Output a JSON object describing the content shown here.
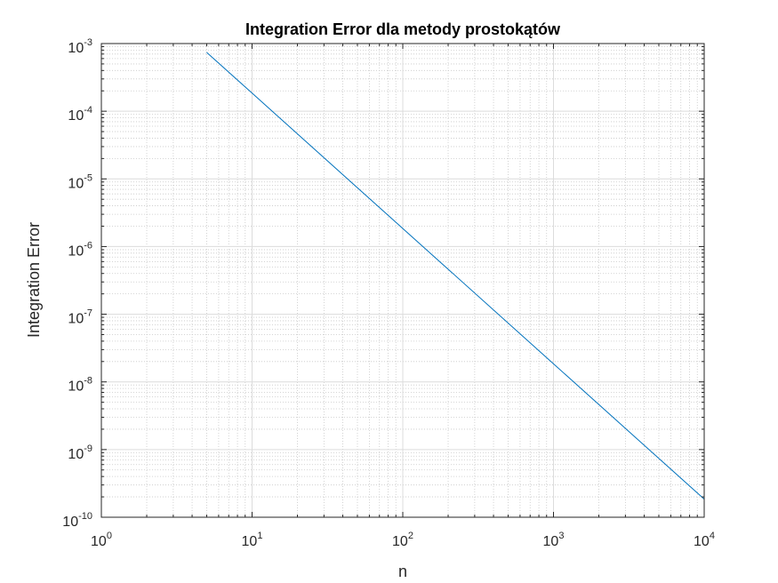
{
  "chart_data": {
    "type": "line",
    "title": "Integration Error dla metody prostokątów",
    "xlabel": "n",
    "ylabel": "Integration Error",
    "xscale": "log",
    "yscale": "log",
    "xlim": [
      1,
      10000
    ],
    "ylim": [
      1e-10,
      0.001
    ],
    "x_ticks": [
      {
        "value": 1,
        "base": "10",
        "exp": "0"
      },
      {
        "value": 10,
        "base": "10",
        "exp": "1"
      },
      {
        "value": 100,
        "base": "10",
        "exp": "2"
      },
      {
        "value": 1000,
        "base": "10",
        "exp": "3"
      },
      {
        "value": 10000,
        "base": "10",
        "exp": "4"
      }
    ],
    "y_ticks": [
      {
        "value": 1e-10,
        "base": "10",
        "exp": "-10"
      },
      {
        "value": 1e-09,
        "base": "10",
        "exp": "-9"
      },
      {
        "value": 1e-08,
        "base": "10",
        "exp": "-8"
      },
      {
        "value": 1e-07,
        "base": "10",
        "exp": "-7"
      },
      {
        "value": 1e-06,
        "base": "10",
        "exp": "-6"
      },
      {
        "value": 1e-05,
        "base": "10",
        "exp": "-5"
      },
      {
        "value": 0.0001,
        "base": "10",
        "exp": "-4"
      },
      {
        "value": 0.001,
        "base": "10",
        "exp": "-3"
      }
    ],
    "grid": true,
    "minor_grid": true,
    "series": [
      {
        "color": "#0072BD",
        "x": [
          5,
          10,
          100,
          1000,
          10000
        ],
        "y": [
          0.00074,
          0.000185,
          1.85e-06,
          1.85e-08,
          1.85e-10
        ]
      }
    ]
  }
}
